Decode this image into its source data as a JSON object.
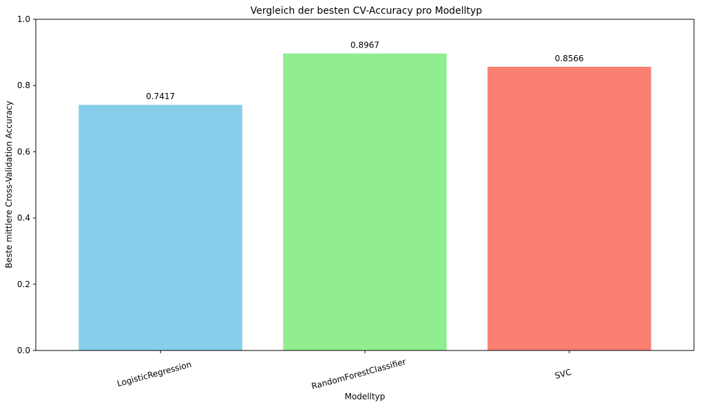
{
  "chart_data": {
    "type": "bar",
    "title": "Vergleich der besten CV-Accuracy pro Modelltyp",
    "xlabel": "Modelltyp",
    "ylabel": "Beste mittlere Cross-Validation Accuracy",
    "categories": [
      "LogisticRegression",
      "RandomForestClassifier",
      "SVC"
    ],
    "values": [
      0.7417,
      0.8967,
      0.8566
    ],
    "value_labels": [
      "0.7417",
      "0.8967",
      "0.8566"
    ],
    "colors": [
      "#87CEEB",
      "#90EE90",
      "#FA8072"
    ],
    "ylim": [
      0,
      1.0
    ],
    "yticks": [
      0.0,
      0.2,
      0.4,
      0.6,
      0.8,
      1.0
    ],
    "ytick_labels": [
      "0.0",
      "0.2",
      "0.4",
      "0.6",
      "0.8",
      "1.0"
    ],
    "xtick_rotation_deg": 15,
    "grid": false,
    "legend": "none"
  }
}
